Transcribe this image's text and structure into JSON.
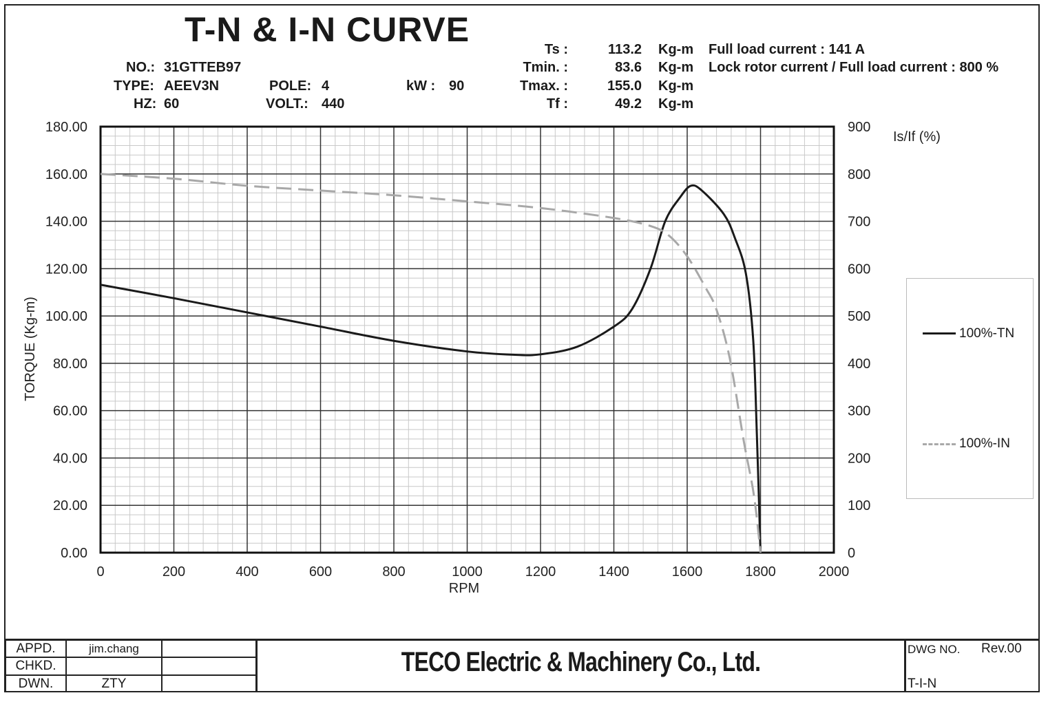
{
  "header": {
    "title": "T-N & I-N  CURVE",
    "no_label": "NO.:",
    "no": "31GTTEB97",
    "type_label": "TYPE:",
    "type": "AEEV3N",
    "hz_label": "HZ:",
    "hz": "60",
    "pole_label": "POLE:",
    "pole": "4",
    "volt_label": "VOLT.:",
    "volt": "440",
    "kw_label": "kW  :",
    "kw": "90",
    "ts_label": "Ts :",
    "ts": "113.2",
    "tmin_label": "Tmin. :",
    "tmin": "83.6",
    "tmax_label": "Tmax. :",
    "tmax": "155.0",
    "tf_label": "Tf :",
    "tf": "49.2",
    "unit": "Kg-m",
    "flc": "Full load current : 141 A",
    "lrc": "Lock rotor current / Full load current : 800 %"
  },
  "chart_data": {
    "type": "line",
    "title": "T-N & I-N  CURVE",
    "xlabel": "RPM",
    "ylabel": "TORQUE (Kg-m)",
    "y2label": "Is/If (%)",
    "xlim": [
      0,
      2000
    ],
    "ylim": [
      0,
      180
    ],
    "y2lim": [
      0,
      900
    ],
    "xticks": [
      "0",
      "200",
      "400",
      "600",
      "800",
      "1000",
      "1200",
      "1400",
      "1600",
      "1800",
      "2000"
    ],
    "yticks": [
      "0.00",
      "20.00",
      "40.00",
      "60.00",
      "80.00",
      "100.00",
      "120.00",
      "140.00",
      "160.00",
      "180.00"
    ],
    "y2ticks": [
      "0",
      "100",
      "200",
      "300",
      "400",
      "500",
      "600",
      "700",
      "800",
      "900"
    ],
    "grid": true,
    "legend_position": "right",
    "series": [
      {
        "name": "100%-TN",
        "axis": "left",
        "color": "#1a1a1a",
        "style": "solid",
        "x": [
          0,
          200,
          400,
          600,
          800,
          1000,
          1130,
          1200,
          1300,
          1400,
          1450,
          1500,
          1540,
          1580,
          1610,
          1640,
          1700,
          1730,
          1760,
          1780,
          1790,
          1800
        ],
        "y": [
          113.2,
          107.5,
          101.5,
          95.5,
          89.5,
          85,
          83.6,
          83.8,
          87,
          95.5,
          103,
          120,
          140,
          150,
          155,
          153,
          143,
          133,
          118,
          90,
          50,
          0
        ]
      },
      {
        "name": "100%-IN",
        "axis": "right",
        "color": "#a8a8a8",
        "style": "dashed",
        "x": [
          0,
          200,
          400,
          600,
          800,
          1000,
          1200,
          1400,
          1500,
          1550,
          1600,
          1650,
          1680,
          1716,
          1754,
          1782,
          1800
        ],
        "y": [
          800,
          790,
          775,
          765,
          755,
          742,
          728,
          707,
          690,
          670,
          626,
          560,
          513,
          411,
          237,
          121,
          0
        ]
      }
    ]
  },
  "title_block": {
    "appd_label": "APPD.",
    "appd": "jim.chang",
    "chkd_label": "CHKD.",
    "chkd": "",
    "dwn_label": "DWN.",
    "dwn": "ZTY",
    "company": "TECO Electric & Machinery Co., Ltd.",
    "dwg_no_label": "DWG NO.",
    "rev": "Rev.00",
    "dwg_no": "T-I-N"
  }
}
